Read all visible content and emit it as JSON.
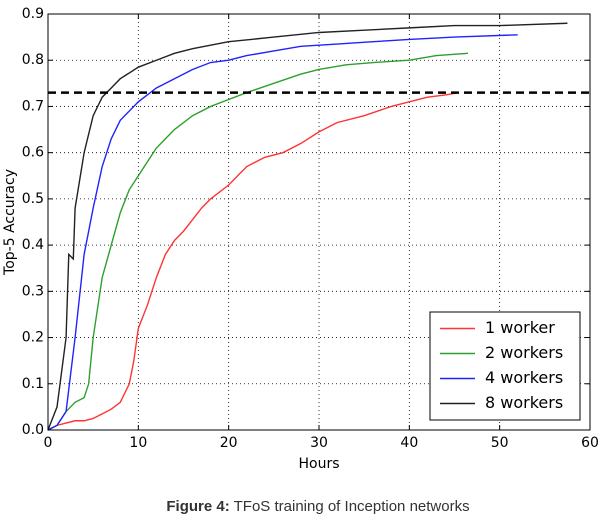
{
  "chart_data": {
    "type": "line",
    "xlabel": "Hours",
    "ylabel": "Top-5 Accuracy",
    "xlim": [
      0,
      60
    ],
    "xticks": [
      0,
      10,
      20,
      30,
      40,
      50,
      60
    ],
    "ylim": [
      0,
      0.9
    ],
    "yticks": [
      {
        "value": 0,
        "label": "0.0"
      },
      0.1,
      0.2,
      0.3,
      0.4,
      0.5,
      0.6,
      0.7,
      0.8,
      0.9
    ],
    "grid": true,
    "legend": "lower right",
    "hline": 0.73,
    "series": [
      {
        "name": "1 worker",
        "color": "#ff3333",
        "x": [
          0,
          1,
          2,
          3,
          4,
          5,
          6,
          7,
          8,
          9,
          9.5,
          10,
          11,
          12,
          13,
          14,
          15,
          16,
          17,
          18,
          20,
          22,
          24,
          26,
          28,
          30,
          32,
          35,
          38,
          40,
          42,
          44,
          45.5
        ],
        "values": [
          0,
          0.01,
          0.015,
          0.02,
          0.02,
          0.025,
          0.035,
          0.045,
          0.06,
          0.1,
          0.15,
          0.22,
          0.27,
          0.33,
          0.38,
          0.41,
          0.43,
          0.455,
          0.48,
          0.5,
          0.53,
          0.57,
          0.59,
          0.6,
          0.62,
          0.645,
          0.665,
          0.68,
          0.7,
          0.71,
          0.72,
          0.725,
          0.73
        ]
      },
      {
        "name": "2 workers",
        "color": "#2ca02c",
        "x": [
          0,
          1,
          2,
          3,
          4,
          4.5,
          5,
          6,
          7,
          8,
          9,
          10,
          11,
          12,
          13,
          14,
          16,
          18,
          20,
          22,
          25,
          28,
          30,
          33,
          36,
          40,
          43,
          46.5
        ],
        "values": [
          0,
          0.01,
          0.04,
          0.06,
          0.07,
          0.1,
          0.2,
          0.33,
          0.4,
          0.47,
          0.52,
          0.55,
          0.58,
          0.61,
          0.63,
          0.65,
          0.68,
          0.7,
          0.715,
          0.73,
          0.75,
          0.77,
          0.78,
          0.79,
          0.795,
          0.8,
          0.81,
          0.815
        ]
      },
      {
        "name": "4 workers",
        "color": "#2222ff",
        "x": [
          0,
          1,
          2,
          3,
          4,
          5,
          6,
          7,
          8,
          9,
          10,
          12,
          14,
          16,
          18,
          20,
          22,
          25,
          28,
          32,
          36,
          40,
          45,
          52
        ],
        "values": [
          0,
          0.01,
          0.04,
          0.2,
          0.38,
          0.48,
          0.57,
          0.63,
          0.67,
          0.69,
          0.71,
          0.74,
          0.76,
          0.78,
          0.795,
          0.8,
          0.81,
          0.82,
          0.83,
          0.835,
          0.84,
          0.845,
          0.85,
          0.855
        ]
      },
      {
        "name": "8 workers",
        "color": "#222222",
        "x": [
          0,
          1,
          2,
          2.3,
          2.8,
          3,
          4,
          5,
          6,
          7,
          8,
          10,
          12,
          14,
          16,
          20,
          25,
          30,
          35,
          40,
          45,
          50,
          57.5
        ],
        "values": [
          0,
          0.05,
          0.2,
          0.38,
          0.37,
          0.48,
          0.6,
          0.68,
          0.72,
          0.74,
          0.76,
          0.785,
          0.8,
          0.815,
          0.825,
          0.84,
          0.85,
          0.86,
          0.865,
          0.87,
          0.875,
          0.875,
          0.88
        ]
      }
    ]
  },
  "caption": {
    "label": "Figure 4:",
    "text": "TFoS training of Inception networks"
  }
}
